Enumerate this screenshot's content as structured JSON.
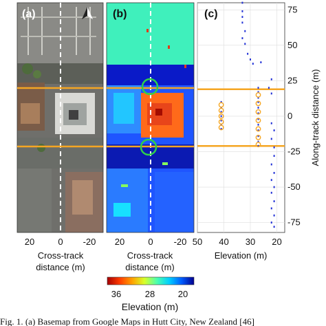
{
  "panels": {
    "a": {
      "label": "(a)"
    },
    "b": {
      "label": "(b)"
    },
    "c": {
      "label": "(c)"
    }
  },
  "xaxis_ab": {
    "ticks": [
      "20",
      "0",
      "-20"
    ],
    "label_line1": "Cross-track",
    "label_line2": "distance (m)"
  },
  "chart_data": {
    "type": "scatter",
    "xlabel": "Elevation (m)",
    "ylabel": "Along-track distance (m)",
    "x_ticks": [
      "50",
      "40",
      "30",
      "20"
    ],
    "y_ticks": [
      "75",
      "50",
      "25",
      "0",
      "-25",
      "-50",
      "-75"
    ],
    "xlim": [
      50,
      17
    ],
    "ylim": [
      -82,
      80
    ],
    "x_reversed": true,
    "grid": true,
    "point_color": "#1f2fd6",
    "highlight_color": "#f5a623",
    "highlight_lines_y": [
      19,
      -21
    ],
    "series": [
      {
        "type": "scatter",
        "name": "",
        "points": [
          [
            33,
            80
          ],
          [
            33,
            74
          ],
          [
            33,
            70
          ],
          [
            33,
            66
          ],
          [
            32,
            60
          ],
          [
            33,
            55
          ],
          [
            32,
            51
          ],
          [
            31,
            44
          ],
          [
            30,
            40
          ],
          [
            29,
            37
          ],
          [
            26,
            38
          ],
          [
            22,
            26
          ],
          [
            23,
            20
          ],
          [
            22,
            16
          ],
          [
            27,
            20
          ],
          [
            27,
            17
          ],
          [
            27,
            13
          ],
          [
            27,
            10
          ],
          [
            27,
            6
          ],
          [
            27,
            2
          ],
          [
            27,
            -2
          ],
          [
            27,
            -6
          ],
          [
            27,
            -10
          ],
          [
            27,
            -14
          ],
          [
            27,
            -18
          ],
          [
            27,
            -21
          ],
          [
            41,
            10
          ],
          [
            41,
            6
          ],
          [
            41,
            3
          ],
          [
            41,
            0
          ],
          [
            41,
            -3
          ],
          [
            41,
            -6
          ],
          [
            41,
            -9
          ],
          [
            22,
            -5
          ],
          [
            21,
            -10
          ],
          [
            22,
            -16
          ],
          [
            21,
            -22
          ],
          [
            21,
            -28
          ],
          [
            22,
            -34
          ],
          [
            21,
            -40
          ],
          [
            22,
            -45
          ],
          [
            21,
            -50
          ],
          [
            22,
            -54
          ],
          [
            21,
            -60
          ],
          [
            22,
            -65
          ],
          [
            21,
            -70
          ],
          [
            22,
            -75
          ],
          [
            21,
            -78
          ]
        ]
      },
      {
        "type": "scatter",
        "name": "",
        "points": [
          [
            41,
            8
          ],
          [
            41,
            4
          ],
          [
            41,
            0
          ],
          [
            41,
            -4
          ],
          [
            41,
            -8
          ],
          [
            27,
            15
          ],
          [
            27,
            9
          ],
          [
            27,
            3
          ],
          [
            27,
            -3
          ],
          [
            27,
            -9
          ],
          [
            27,
            -15
          ],
          [
            27,
            -20
          ]
        ]
      }
    ]
  },
  "colorbar": {
    "ticks": [
      "36",
      "28",
      "20"
    ],
    "label": "Elevation (m)",
    "colors": [
      "#a50000",
      "#ff3b00",
      "#ffa000",
      "#d8ff2a",
      "#4dffae",
      "#00cfff",
      "#005cff",
      "#00008f"
    ]
  },
  "caption": {
    "text": "Fig. 1.   (a) Basemap from Google Maps in Hutt City, New Zealand [46]"
  },
  "icons": {
    "north_arrow": "north-arrow-icon"
  }
}
